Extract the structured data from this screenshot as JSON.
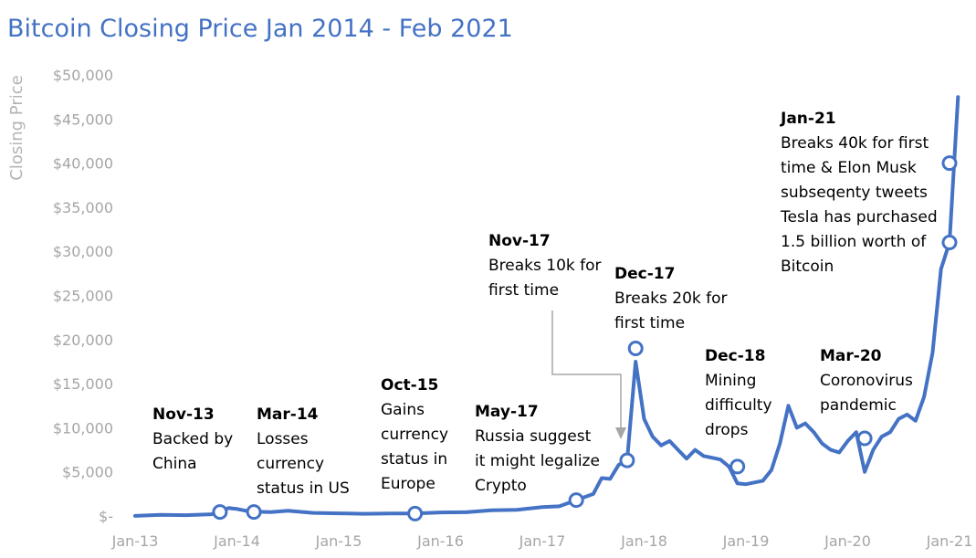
{
  "chart_data": {
    "type": "line",
    "title": "Bitcoin Closing Price Jan 2014 - Feb 2021",
    "xlabel": "",
    "ylabel": "Closing Price",
    "ylim": [
      0,
      50000
    ],
    "y_ticks": [
      0,
      5000,
      10000,
      15000,
      20000,
      25000,
      30000,
      35000,
      40000,
      45000,
      50000
    ],
    "y_tick_labels": [
      "$-",
      "$5,000",
      "$10,000",
      "$15,000",
      "$20,000",
      "$25,000",
      "$30,000",
      "$35,000",
      "$40,000",
      "$45,000",
      "$50,000"
    ],
    "x_ticks": [
      "2013-01",
      "2014-01",
      "2015-01",
      "2016-01",
      "2017-01",
      "2018-01",
      "2019-01",
      "2020-01",
      "2021-01"
    ],
    "x_tick_labels": [
      "Jan-13",
      "Jan-14",
      "Jan-15",
      "Jan-16",
      "Jan-17",
      "Jan-18",
      "Jan-19",
      "Jan-20",
      "Jan-21"
    ],
    "grid": false,
    "series": [
      {
        "color": "#4472C4",
        "x": [
          "2013-01",
          "2013-04",
          "2013-07",
          "2013-10",
          "2013-11",
          "2013-12",
          "2014-01",
          "2014-02",
          "2014-03",
          "2014-05",
          "2014-07",
          "2014-10",
          "2015-01",
          "2015-04",
          "2015-07",
          "2015-10",
          "2016-01",
          "2016-04",
          "2016-07",
          "2016-10",
          "2017-01",
          "2017-03",
          "2017-05",
          "2017-07",
          "2017-08",
          "2017-09",
          "2017-10",
          "2017-11",
          "2017-12",
          "2018-01",
          "2018-02",
          "2018-03",
          "2018-04",
          "2018-05",
          "2018-06",
          "2018-07",
          "2018-08",
          "2018-09",
          "2018-10",
          "2018-11",
          "2018-12",
          "2019-01",
          "2019-02",
          "2019-03",
          "2019-04",
          "2019-05",
          "2019-06",
          "2019-07",
          "2019-08",
          "2019-09",
          "2019-10",
          "2019-11",
          "2019-12",
          "2020-01",
          "2020-02",
          "2020-03",
          "2020-04",
          "2020-05",
          "2020-06",
          "2020-07",
          "2020-08",
          "2020-09",
          "2020-10",
          "2020-11",
          "2020-12",
          "2021-01",
          "2021-02"
        ],
        "y": [
          15,
          120,
          90,
          200,
          450,
          900,
          800,
          600,
          500,
          450,
          600,
          350,
          300,
          250,
          280,
          280,
          400,
          420,
          650,
          700,
          1000,
          1100,
          1800,
          2500,
          4300,
          4200,
          5800,
          6300,
          17500,
          11000,
          9000,
          8000,
          8500,
          7500,
          6500,
          7500,
          6800,
          6600,
          6400,
          5600,
          3700,
          3600,
          3800,
          4000,
          5200,
          8200,
          12500,
          10000,
          10500,
          9500,
          8200,
          7500,
          7200,
          8500,
          9500,
          5000,
          7500,
          9000,
          9500,
          11000,
          11500,
          10800,
          13500,
          18500,
          28000,
          31000,
          47500
        ]
      }
    ],
    "annotations": [
      {
        "x": "2013-11",
        "y": 450,
        "title": "Nov-13",
        "lines": [
          "Backed by",
          "China"
        ]
      },
      {
        "x": "2014-03",
        "y": 450,
        "title": "Mar-14",
        "lines": [
          "Losses",
          "currency",
          "status in US"
        ]
      },
      {
        "x": "2015-10",
        "y": 270,
        "title": "Oct-15",
        "lines": [
          "Gains",
          "currency",
          "status in",
          "Europe"
        ]
      },
      {
        "x": "2017-05",
        "y": 1800,
        "title": "May-17",
        "lines": [
          "Russia suggest",
          "it might legalize",
          "Crypto"
        ]
      },
      {
        "x": "2017-11",
        "y": 6300,
        "title": "Nov-17",
        "lines": [
          "Breaks 10k for",
          "first time"
        ]
      },
      {
        "x": "2017-12",
        "y": 19000,
        "title": "Dec-17",
        "lines": [
          "Breaks 20k for",
          "first time"
        ]
      },
      {
        "x": "2018-12",
        "y": 5600,
        "title": "Dec-18",
        "lines": [
          "Mining",
          "difficulty",
          "drops"
        ]
      },
      {
        "x": "2020-03",
        "y": 8800,
        "title": "Mar-20",
        "lines": [
          "Coronovirus",
          "pandemic"
        ]
      },
      {
        "x": "2021-01",
        "y": 40000,
        "title": "Jan-21",
        "lines": [
          "Breaks 40k for first",
          "time & Elon Musk",
          "subseqenty tweets",
          "Tesla has purchased",
          "1.5 billion worth of",
          "Bitcoin"
        ]
      },
      {
        "x": "2021-01",
        "y": 31000,
        "title": "",
        "lines": []
      }
    ]
  }
}
